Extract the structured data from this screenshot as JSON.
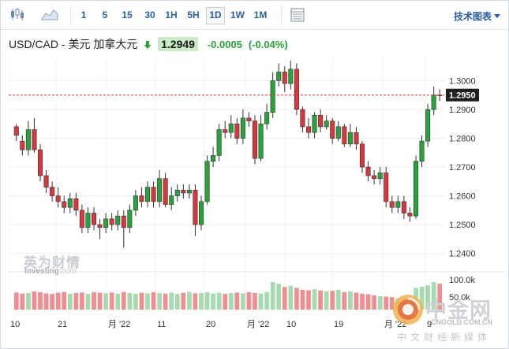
{
  "toolbar": {
    "chart_type_icons": [
      "candlestick-icon",
      "area-chart-icon"
    ],
    "intervals": [
      "1",
      "5",
      "15",
      "30",
      "1H",
      "5H",
      "1D",
      "1W",
      "1M"
    ],
    "active_interval": "1D",
    "table_icon": "table-icon",
    "technical_chart_label": "技术图表"
  },
  "quote": {
    "pair": "USD/CAD - 美元 加拿大元",
    "direction_icon": "down-arrow-icon",
    "price": "1.2949",
    "change": "-0.0005",
    "change_pct": "(-0.04%)"
  },
  "watermarks": {
    "brand_cn": "英为财情",
    "brand_en": "Investing",
    "brand_suffix": ".com",
    "site_cn": "中金网",
    "site_url": "CNGOLD.COM.CN",
    "site_tagline": "中文财经新媒体"
  },
  "colors": {
    "up": "#27a33a",
    "down": "#d9363e",
    "vol_up": "#a6dbb0",
    "vol_down": "#ef8f92"
  },
  "chart_data": {
    "type": "candlestick",
    "y_ticks": [
      1.24,
      1.25,
      1.26,
      1.27,
      1.28,
      1.29,
      1.3
    ],
    "y_tick_labels": [
      "1.2400",
      "1.2500",
      "1.2600",
      "1.2700",
      "1.2800",
      "1.2900",
      "1.3000"
    ],
    "ylim": [
      1.2358,
      1.3075
    ],
    "current_price_label": "1.2950",
    "current_price": 1.295,
    "x_tick_labels": [
      "10",
      "21",
      "月 '22",
      "11",
      "20",
      "月 '22",
      "10",
      "19",
      "月 '22",
      "9"
    ],
    "volume_tick_labels": [
      "100.0k",
      "50.0k"
    ],
    "volume_max": 120,
    "candles": [
      [
        1.284,
        1.281,
        1.285,
        1.279
      ],
      [
        1.279,
        1.276,
        1.281,
        1.274
      ],
      [
        1.276,
        1.283,
        1.286,
        1.274
      ],
      [
        1.283,
        1.276,
        1.287,
        1.275
      ],
      [
        1.276,
        1.267,
        1.278,
        1.265
      ],
      [
        1.267,
        1.263,
        1.269,
        1.261
      ],
      [
        1.263,
        1.26,
        1.265,
        1.258
      ],
      [
        1.26,
        1.258,
        1.263,
        1.256
      ],
      [
        1.258,
        1.256,
        1.26,
        1.254
      ],
      [
        1.256,
        1.259,
        1.261,
        1.254
      ],
      [
        1.259,
        1.255,
        1.261,
        1.253
      ],
      [
        1.255,
        1.249,
        1.257,
        1.247
      ],
      [
        1.249,
        1.254,
        1.256,
        1.247
      ],
      [
        1.254,
        1.25,
        1.256,
        1.248
      ],
      [
        1.25,
        1.249,
        1.252,
        1.245
      ],
      [
        1.249,
        1.252,
        1.254,
        1.247
      ],
      [
        1.252,
        1.25,
        1.254,
        1.248
      ],
      [
        1.25,
        1.253,
        1.255,
        1.248
      ],
      [
        1.253,
        1.249,
        1.255,
        1.242
      ],
      [
        1.249,
        1.255,
        1.257,
        1.247
      ],
      [
        1.255,
        1.26,
        1.262,
        1.253
      ],
      [
        1.26,
        1.258,
        1.263,
        1.256
      ],
      [
        1.258,
        1.263,
        1.265,
        1.256
      ],
      [
        1.263,
        1.258,
        1.265,
        1.256
      ],
      [
        1.258,
        1.266,
        1.269,
        1.256
      ],
      [
        1.266,
        1.257,
        1.268,
        1.256
      ],
      [
        1.257,
        1.26,
        1.263,
        1.255
      ],
      [
        1.26,
        1.262,
        1.264,
        1.258
      ],
      [
        1.262,
        1.261,
        1.264,
        1.259
      ],
      [
        1.261,
        1.262,
        1.264,
        1.259
      ],
      [
        1.262,
        1.25,
        1.264,
        1.246
      ],
      [
        1.25,
        1.258,
        1.26,
        1.248
      ],
      [
        1.258,
        1.272,
        1.274,
        1.257
      ],
      [
        1.272,
        1.274,
        1.277,
        1.27
      ],
      [
        1.274,
        1.283,
        1.285,
        1.272
      ],
      [
        1.283,
        1.282,
        1.286,
        1.28
      ],
      [
        1.282,
        1.285,
        1.288,
        1.28
      ],
      [
        1.285,
        1.28,
        1.287,
        1.278
      ],
      [
        1.28,
        1.287,
        1.29,
        1.278
      ],
      [
        1.287,
        1.286,
        1.289,
        1.284
      ],
      [
        1.286,
        1.273,
        1.288,
        1.271
      ],
      [
        1.273,
        1.285,
        1.288,
        1.272
      ],
      [
        1.285,
        1.289,
        1.292,
        1.283
      ],
      [
        1.289,
        1.3,
        1.303,
        1.287
      ],
      [
        1.3,
        1.303,
        1.306,
        1.298
      ],
      [
        1.303,
        1.299,
        1.305,
        1.296
      ],
      [
        1.299,
        1.304,
        1.307,
        1.297
      ],
      [
        1.304,
        1.29,
        1.306,
        1.288
      ],
      [
        1.29,
        1.284,
        1.291,
        1.282
      ],
      [
        1.284,
        1.282,
        1.287,
        1.28
      ],
      [
        1.282,
        1.288,
        1.289,
        1.28
      ],
      [
        1.288,
        1.284,
        1.29,
        1.282
      ],
      [
        1.284,
        1.286,
        1.288,
        1.283
      ],
      [
        1.286,
        1.28,
        1.287,
        1.278
      ],
      [
        1.28,
        1.284,
        1.286,
        1.279
      ],
      [
        1.284,
        1.278,
        1.285,
        1.277
      ],
      [
        1.278,
        1.282,
        1.285,
        1.277
      ],
      [
        1.282,
        1.278,
        1.284,
        1.276
      ],
      [
        1.278,
        1.27,
        1.279,
        1.268
      ],
      [
        1.27,
        1.267,
        1.272,
        1.265
      ],
      [
        1.267,
        1.266,
        1.269,
        1.264
      ],
      [
        1.266,
        1.268,
        1.27,
        1.264
      ],
      [
        1.268,
        1.258,
        1.27,
        1.256
      ],
      [
        1.258,
        1.256,
        1.26,
        1.254
      ],
      [
        1.256,
        1.258,
        1.26,
        1.254
      ],
      [
        1.258,
        1.254,
        1.26,
        1.252
      ],
      [
        1.254,
        1.253,
        1.256,
        1.251
      ],
      [
        1.253,
        1.272,
        1.274,
        1.252
      ],
      [
        1.272,
        1.279,
        1.281,
        1.27
      ],
      [
        1.279,
        1.29,
        1.292,
        1.277
      ],
      [
        1.29,
        1.295,
        1.298,
        1.288
      ],
      [
        1.295,
        1.2949,
        1.297,
        1.293
      ]
    ],
    "volume": [
      62,
      58,
      60,
      66,
      63,
      59,
      57,
      61,
      64,
      58,
      60,
      62,
      57,
      63,
      61,
      59,
      62,
      58,
      64,
      60,
      57,
      61,
      59,
      63,
      60,
      58,
      62,
      57,
      61,
      64,
      59,
      60,
      63,
      58,
      61,
      57,
      60,
      62,
      59,
      63,
      60,
      58,
      64,
      100,
      94,
      82,
      86,
      79,
      72,
      70,
      74,
      69,
      66,
      68,
      72,
      64,
      66,
      62,
      58,
      56,
      52,
      49,
      47,
      45,
      41,
      38,
      36,
      79,
      83,
      88,
      100,
      94
    ]
  }
}
